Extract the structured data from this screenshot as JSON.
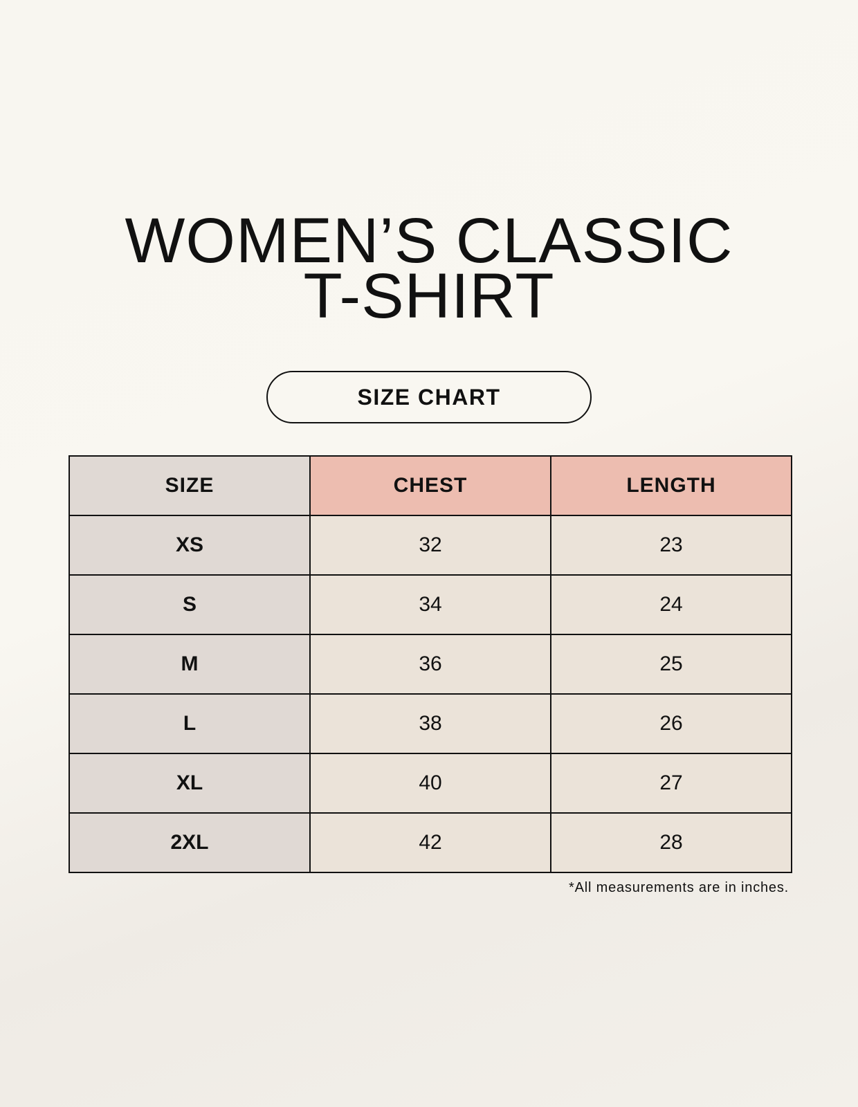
{
  "title_line1": "WOMEN’S CLASSIC",
  "title_line2": "T-SHIRT",
  "badge": "SIZE CHART",
  "table": {
    "headers": [
      "SIZE",
      "CHEST",
      "LENGTH"
    ],
    "rows": [
      [
        "XS",
        "32",
        "23"
      ],
      [
        "S",
        "34",
        "24"
      ],
      [
        "M",
        "36",
        "25"
      ],
      [
        "L",
        "38",
        "26"
      ],
      [
        "XL",
        "40",
        "27"
      ],
      [
        "2XL",
        "42",
        "28"
      ]
    ]
  },
  "note": "*All measurements are in inches.",
  "colors": {
    "size_column": "#e0d9d4",
    "header_accent": "#edbdb0",
    "cell": "#ebe3d9"
  }
}
